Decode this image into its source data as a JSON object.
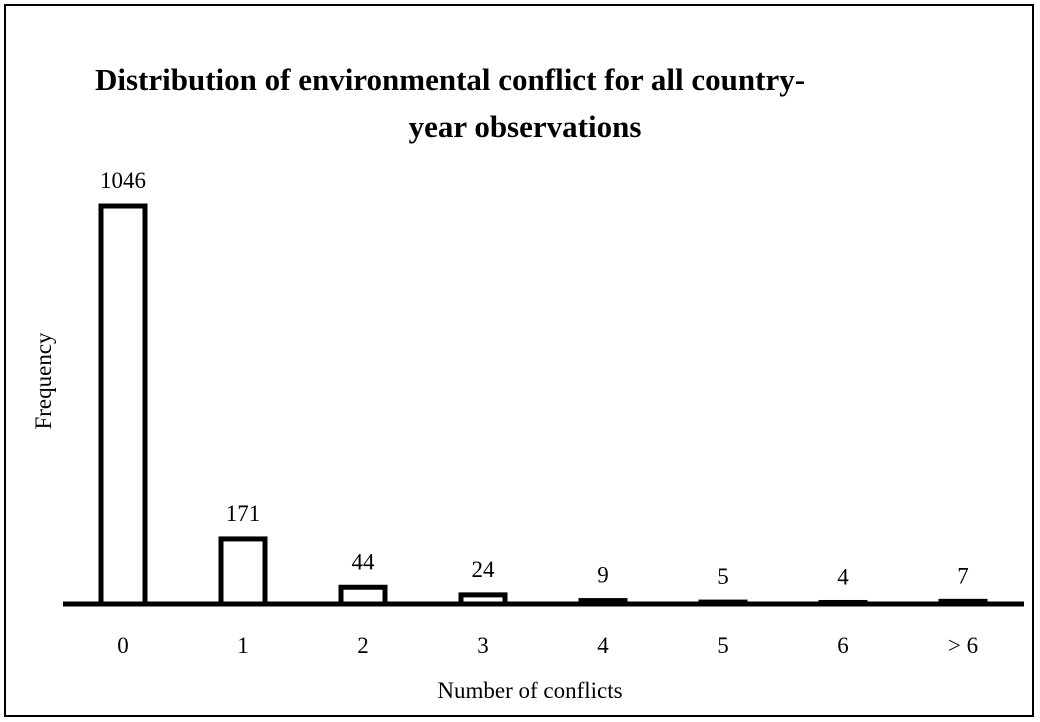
{
  "chart_data": {
    "type": "bar",
    "title_lines": [
      "Distribution of environmental conflict for all country-",
      "year observations"
    ],
    "xlabel": "Number of conflicts",
    "ylabel": "Frequency",
    "categories": [
      "0",
      "1",
      "2",
      "3",
      "4",
      "5",
      "6",
      "> 6"
    ],
    "values": [
      1046,
      171,
      44,
      24,
      9,
      5,
      4,
      7
    ],
    "data_labels": [
      "1046",
      "171",
      "44",
      "24",
      "9",
      "5",
      "4",
      "7"
    ],
    "ylim": [
      0,
      1046
    ],
    "grid": false,
    "legend": "none",
    "colors": {
      "bar_fill": "#ffffff",
      "bar_stroke": "#000000",
      "axis": "#000000"
    }
  }
}
